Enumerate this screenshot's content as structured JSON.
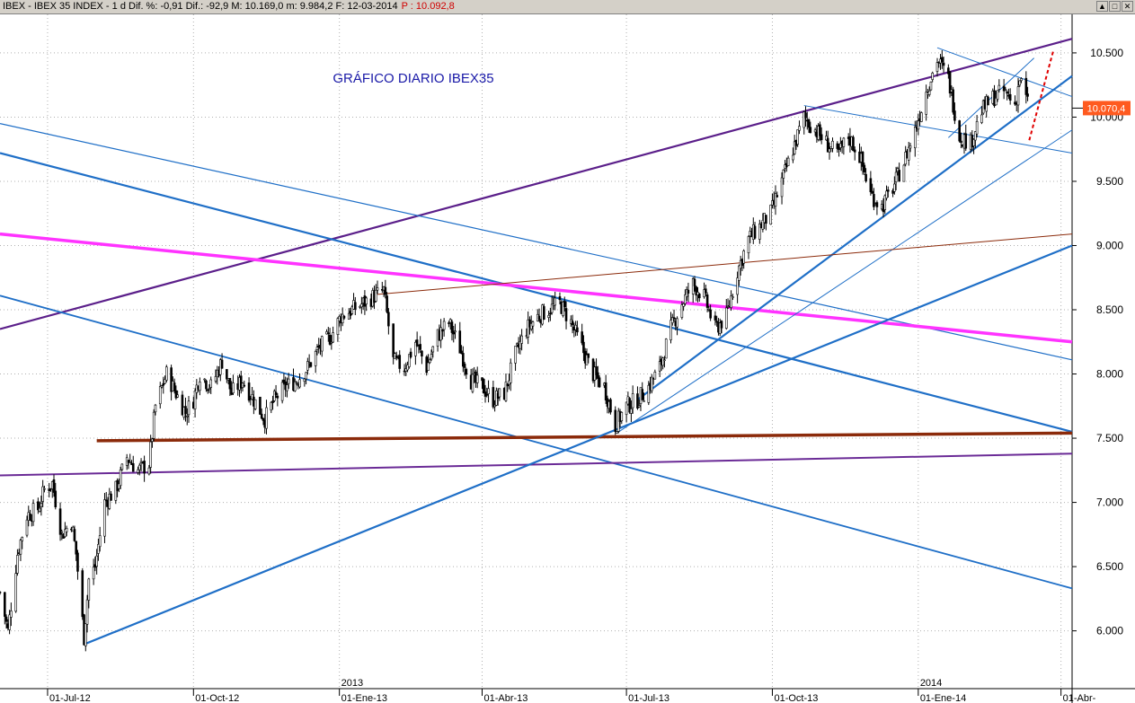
{
  "window": {
    "title": "IBEX - IBEX 35 INDEX - 1 d Dif. %: -0,91  Dif.: -92,9 M: 10.169,0  m: 9.984,2  F: 12-03-2014",
    "price_label": "P : 10.092,8",
    "buttons": [
      "▲",
      "□",
      "✕"
    ]
  },
  "chart_data": {
    "type": "line",
    "title": "GRÁFICO DIARIO IBEX35",
    "xlabel": "",
    "ylabel": "",
    "ylim": [
      5550,
      10800
    ],
    "grid": true,
    "y_ticks": [
      "6.000",
      "6.500",
      "7.000",
      "7.500",
      "8.000",
      "8.500",
      "9.000",
      "9.500",
      "10.000",
      "10.500"
    ],
    "y_tick_values": [
      6000,
      6500,
      7000,
      7500,
      8000,
      8500,
      9000,
      9500,
      10000,
      10500
    ],
    "x_ticks": [
      "01-Jul-12",
      "01-Oct-12",
      "01-Ene-13",
      "01-Abr-13",
      "01-Jul-13",
      "01-Oct-13",
      "01-Ene-14",
      "01-Abr-"
    ],
    "x_tick_dates": [
      "2012-07-01",
      "2012-10-01",
      "2013-01-01",
      "2013-04-01",
      "2013-07-01",
      "2013-10-01",
      "2014-01-01",
      "2014-04-01"
    ],
    "year_labels": [
      "2013",
      "2014"
    ],
    "year_dates": [
      "2013-01-01",
      "2014-01-01"
    ],
    "last_price_label": "10.070,4",
    "last_price": 10070,
    "x_start": "2012-06-01",
    "x_end": "2014-04-08",
    "series": [
      {
        "type": "candles",
        "points": [
          [
            "2012-06-01",
            6300
          ],
          [
            "2012-06-06",
            6000
          ],
          [
            "2012-06-12",
            6600
          ],
          [
            "2012-06-18",
            6900
          ],
          [
            "2012-06-25",
            6950
          ],
          [
            "2012-06-29",
            7100
          ],
          [
            "2012-07-04",
            7150
          ],
          [
            "2012-07-10",
            6750
          ],
          [
            "2012-07-16",
            6850
          ],
          [
            "2012-07-19",
            6600
          ],
          [
            "2012-07-24",
            5950
          ],
          [
            "2012-07-27",
            6400
          ],
          [
            "2012-07-31",
            6500
          ],
          [
            "2012-08-06",
            7000
          ],
          [
            "2012-08-13",
            7100
          ],
          [
            "2012-08-20",
            7350
          ],
          [
            "2012-08-27",
            7250
          ],
          [
            "2012-09-03",
            7300
          ],
          [
            "2012-09-07",
            7750
          ],
          [
            "2012-09-14",
            8000
          ],
          [
            "2012-09-20",
            7850
          ],
          [
            "2012-09-26",
            7700
          ],
          [
            "2012-10-01",
            7800
          ],
          [
            "2012-10-05",
            8000
          ],
          [
            "2012-10-12",
            7900
          ],
          [
            "2012-10-19",
            8100
          ],
          [
            "2012-10-25",
            7850
          ],
          [
            "2012-11-01",
            7950
          ],
          [
            "2012-11-08",
            7800
          ],
          [
            "2012-11-15",
            7650
          ],
          [
            "2012-11-21",
            7800
          ],
          [
            "2012-11-28",
            7900
          ],
          [
            "2012-12-05",
            7950
          ],
          [
            "2012-12-12",
            8050
          ],
          [
            "2012-12-19",
            8200
          ],
          [
            "2012-12-27",
            8300
          ],
          [
            "2013-01-02",
            8450
          ],
          [
            "2013-01-09",
            8500
          ],
          [
            "2013-01-16",
            8550
          ],
          [
            "2013-01-22",
            8600
          ],
          [
            "2013-01-29",
            8650
          ],
          [
            "2013-02-04",
            8100
          ],
          [
            "2013-02-11",
            8050
          ],
          [
            "2013-02-18",
            8250
          ],
          [
            "2013-02-25",
            8050
          ],
          [
            "2013-03-04",
            8300
          ],
          [
            "2013-03-11",
            8400
          ],
          [
            "2013-03-18",
            8200
          ],
          [
            "2013-03-25",
            7950
          ],
          [
            "2013-04-01",
            7900
          ],
          [
            "2013-04-08",
            7800
          ],
          [
            "2013-04-15",
            7850
          ],
          [
            "2013-04-22",
            8150
          ],
          [
            "2013-04-29",
            8350
          ],
          [
            "2013-05-06",
            8450
          ],
          [
            "2013-05-13",
            8500
          ],
          [
            "2013-05-20",
            8550
          ],
          [
            "2013-05-27",
            8400
          ],
          [
            "2013-06-03",
            8200
          ],
          [
            "2013-06-10",
            8000
          ],
          [
            "2013-06-17",
            7900
          ],
          [
            "2013-06-24",
            7600
          ],
          [
            "2013-07-01",
            7750
          ],
          [
            "2013-07-08",
            7800
          ],
          [
            "2013-07-15",
            7900
          ],
          [
            "2013-07-22",
            8050
          ],
          [
            "2013-07-29",
            8350
          ],
          [
            "2013-08-05",
            8550
          ],
          [
            "2013-08-12",
            8700
          ],
          [
            "2013-08-19",
            8600
          ],
          [
            "2013-08-26",
            8350
          ],
          [
            "2013-09-02",
            8450
          ],
          [
            "2013-09-09",
            8800
          ],
          [
            "2013-09-16",
            9050
          ],
          [
            "2013-09-23",
            9150
          ],
          [
            "2013-09-30",
            9250
          ],
          [
            "2013-10-07",
            9500
          ],
          [
            "2013-10-14",
            9750
          ],
          [
            "2013-10-21",
            10000
          ],
          [
            "2013-10-28",
            9900
          ],
          [
            "2013-11-04",
            9800
          ],
          [
            "2013-11-11",
            9700
          ],
          [
            "2013-11-18",
            9850
          ],
          [
            "2013-11-25",
            9700
          ],
          [
            "2013-12-02",
            9400
          ],
          [
            "2013-12-09",
            9300
          ],
          [
            "2013-12-16",
            9450
          ],
          [
            "2013-12-23",
            9650
          ],
          [
            "2013-12-30",
            9900
          ],
          [
            "2014-01-06",
            10200
          ],
          [
            "2014-01-13",
            10450
          ],
          [
            "2014-01-20",
            10300
          ],
          [
            "2014-01-27",
            9850
          ],
          [
            "2014-02-03",
            9800
          ],
          [
            "2014-02-10",
            10050
          ],
          [
            "2014-02-17",
            10150
          ],
          [
            "2014-02-24",
            10200
          ],
          [
            "2014-03-03",
            10100
          ],
          [
            "2014-03-06",
            10300
          ],
          [
            "2014-03-12",
            10070
          ]
        ]
      }
    ],
    "trendlines": [
      {
        "color": "#5b1f8a",
        "width": 2.2,
        "from": [
          "2012-06-01",
          8350
        ],
        "to": [
          "2014-04-08",
          10610
        ]
      },
      {
        "color": "#1f6fc7",
        "width": 2.2,
        "from": [
          "2012-06-01",
          9720
        ],
        "to": [
          "2014-04-08",
          7550
        ]
      },
      {
        "color": "#1f6fc7",
        "width": 1.2,
        "from": [
          "2012-06-01",
          9950
        ],
        "to": [
          "2014-04-08",
          8110
        ]
      },
      {
        "color": "#1f6fc7",
        "width": 1.8,
        "from": [
          "2012-06-01",
          8610
        ],
        "to": [
          "2014-04-08",
          6330
        ]
      },
      {
        "color": "#ff33ff",
        "width": 3.5,
        "from": [
          "2012-06-01",
          9090
        ],
        "to": [
          "2014-04-08",
          8250
        ]
      },
      {
        "color": "#8b2a0a",
        "width": 3.5,
        "from": [
          "2012-08-01",
          7480
        ],
        "to": [
          "2014-04-08",
          7540
        ]
      },
      {
        "color": "#6a2a96",
        "width": 2.0,
        "from": [
          "2012-06-01",
          7210
        ],
        "to": [
          "2014-04-08",
          7380
        ]
      },
      {
        "color": "#1f6fc7",
        "width": 2.2,
        "from": [
          "2012-07-25",
          5900
        ],
        "to": [
          "2014-04-08",
          9000
        ]
      },
      {
        "color": "#1f6fc7",
        "width": 1.0,
        "from": [
          "2013-06-25",
          7540
        ],
        "to": [
          "2014-04-08",
          9900
        ]
      },
      {
        "color": "#1f6fc7",
        "width": 2.2,
        "from": [
          "2013-07-08",
          7800
        ],
        "to": [
          "2014-04-08",
          10320
        ]
      },
      {
        "color": "#8b2a0a",
        "width": 1.0,
        "from": [
          "2013-01-25",
          8620
        ],
        "to": [
          "2014-04-08",
          9090
        ]
      },
      {
        "color": "#1f6fc7",
        "width": 1.0,
        "from": [
          "2013-10-21",
          10090
        ],
        "to": [
          "2014-04-08",
          9720
        ]
      },
      {
        "color": "#1f6fc7",
        "width": 1.0,
        "from": [
          "2014-01-13",
          10540
        ],
        "to": [
          "2014-04-08",
          10160
        ]
      },
      {
        "color": "#1f6fc7",
        "width": 1.0,
        "from": [
          "2014-01-20",
          9840
        ],
        "to": [
          "2014-03-15",
          10460
        ]
      }
    ],
    "projection": {
      "color": "#e00000",
      "from": [
        "2014-03-12",
        9820
      ],
      "to": [
        "2014-03-27",
        10510
      ]
    }
  }
}
